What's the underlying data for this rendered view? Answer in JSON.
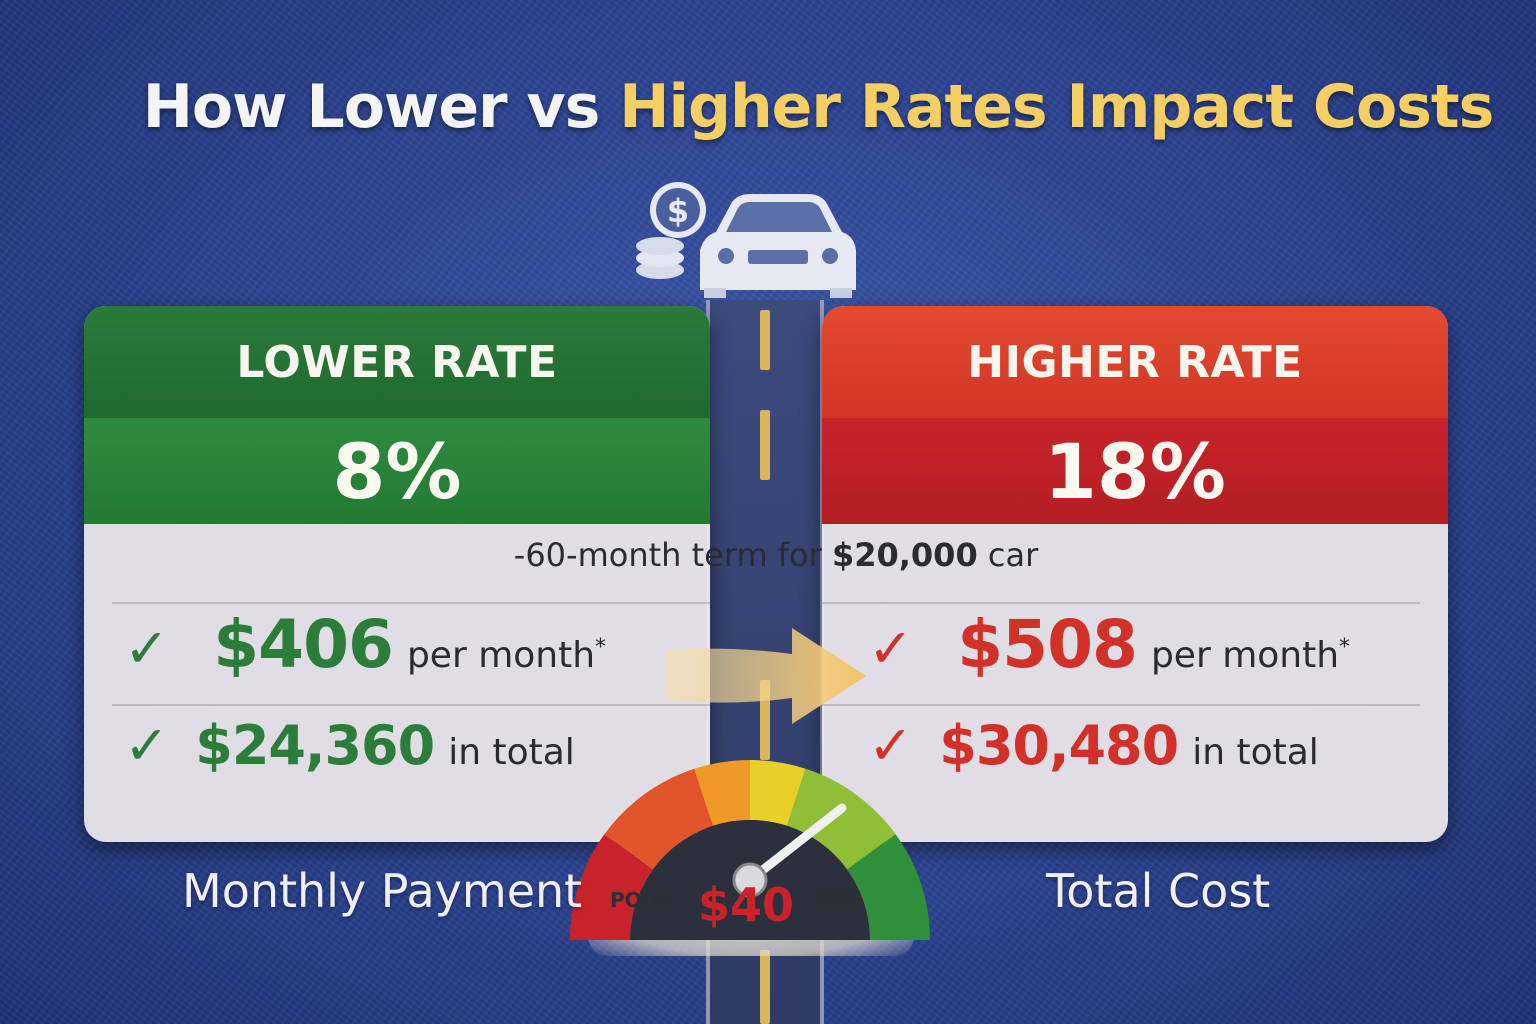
{
  "title": {
    "part1": "How Lower vs ",
    "part2": "Higher Rates Impact Costs"
  },
  "left_card": {
    "heading": "LOWER RATE",
    "rate": "8%",
    "monthly_amount": "$406",
    "monthly_unit": "per month",
    "monthly_mark": "*",
    "total_amount": "$24,360",
    "total_unit": "in total"
  },
  "right_card": {
    "heading": "HIGHER RATE",
    "rate": "18%",
    "monthly_amount": "$508",
    "monthly_unit": "per month",
    "monthly_mark": "*",
    "total_amount": "$30,480",
    "total_unit": "in total"
  },
  "term": {
    "prefix": "-60-month term for ",
    "amount": "$20,000",
    "suffix": " car"
  },
  "gauge": {
    "left_label": "POUR",
    "value": "$40",
    "right_label": "900"
  },
  "captions": {
    "left": "Monthly Payment",
    "right": "Total Cost"
  },
  "icons": {
    "car": "car-icon",
    "coin": "dollar-coin-icon",
    "check": "checkmark-icon",
    "arrow": "arrow-right-icon",
    "gauge": "speedometer-gauge-icon"
  },
  "colors": {
    "green": "#2d7d3a",
    "red": "#d2312a",
    "gold": "#f5cf64",
    "background": "#2e4796"
  }
}
